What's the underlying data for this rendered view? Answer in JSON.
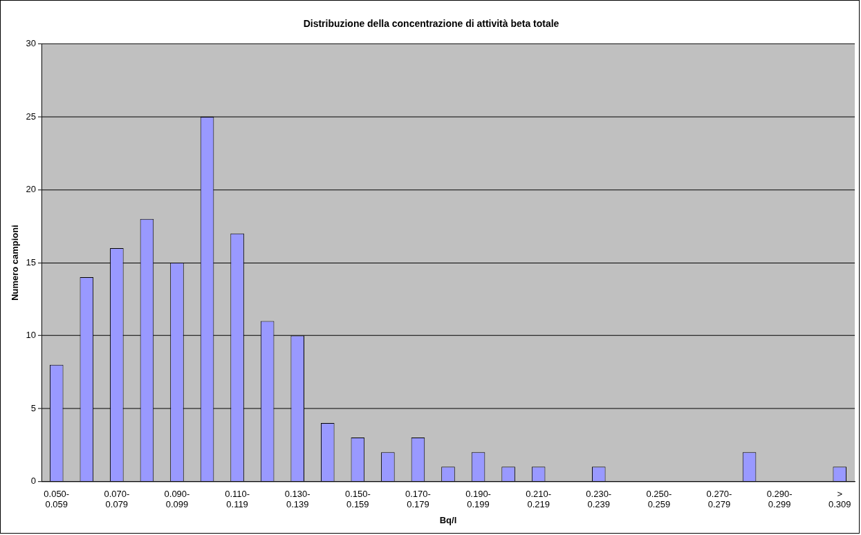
{
  "chart_data": {
    "type": "bar",
    "title": "Distribuzione della concentrazione di attività beta totale",
    "xlabel": "Bq/l",
    "ylabel": "Numero campioni",
    "categories": [
      "0.050-0.059",
      null,
      "0.070-0.079",
      null,
      "0.090-0.099",
      null,
      "0.110-0.119",
      null,
      "0.130-0.139",
      null,
      "0.150-0.159",
      null,
      "0.170-0.179",
      null,
      "0.190-0.199",
      null,
      "0.210-0.219",
      null,
      "0.230-0.239",
      null,
      "0.250-0.259",
      null,
      "0.270-0.279",
      null,
      "0.290-0.299",
      null,
      "> 0.309"
    ],
    "values": [
      8,
      14,
      16,
      18,
      15,
      25,
      17,
      11,
      10,
      4,
      3,
      2,
      3,
      1,
      2,
      1,
      1,
      0,
      1,
      0,
      0,
      0,
      0,
      2,
      0,
      0,
      1
    ],
    "color": "#9999ff",
    "ylim": [
      0,
      30
    ],
    "yticks": [
      0,
      5,
      10,
      15,
      20,
      25,
      30
    ],
    "grid": "y"
  }
}
